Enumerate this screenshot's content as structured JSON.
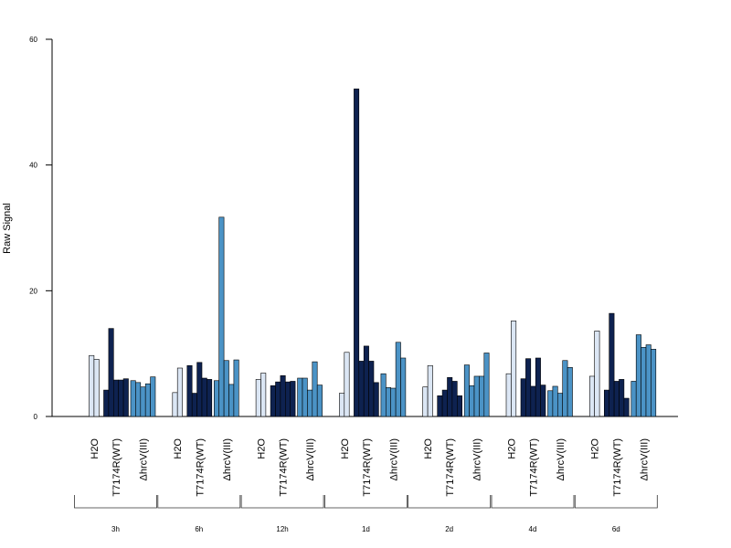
{
  "chart_data": {
    "type": "bar",
    "ylabel": "Raw Signal",
    "ylim": [
      0,
      60
    ],
    "yticks": [
      0,
      20,
      40,
      60
    ],
    "colors": {
      "H2O": "#dbe6f4",
      "T7174R(WT)": "#0e2250",
      "ΔhrcV(III)": "#4b93c6"
    },
    "groups": [
      "H2O",
      "T7174R(WT)",
      "ΔhrcV(III)"
    ],
    "timepoints": [
      {
        "label": "3h",
        "series": {
          "H2O": [
            9.7,
            9.1
          ],
          "T7174R(WT)": [
            4.2,
            14.0,
            5.8,
            5.8,
            6.0
          ],
          "ΔhrcV(III)": [
            5.7,
            5.4,
            4.7,
            5.2,
            6.3
          ]
        }
      },
      {
        "label": "6h",
        "series": {
          "H2O": [
            3.8,
            7.7
          ],
          "T7174R(WT)": [
            8.1,
            3.7,
            8.6,
            6.1,
            5.9
          ],
          "ΔhrcV(III)": [
            5.7,
            31.7,
            8.9,
            5.1,
            9.0
          ]
        }
      },
      {
        "label": "12h",
        "series": {
          "H2O": [
            5.9,
            6.9
          ],
          "T7174R(WT)": [
            4.9,
            5.5,
            6.5,
            5.5,
            5.6
          ],
          "ΔhrcV(III)": [
            6.1,
            6.1,
            4.2,
            8.7,
            5.0
          ]
        }
      },
      {
        "label": "1d",
        "series": {
          "H2O": [
            3.7,
            10.2
          ],
          "T7174R(WT)": [
            52.1,
            8.8,
            11.2,
            8.8,
            5.4
          ],
          "ΔhrcV(III)": [
            6.8,
            4.6,
            4.5,
            11.8,
            9.3
          ]
        }
      },
      {
        "label": "2d",
        "series": {
          "H2O": [
            4.7,
            8.1
          ],
          "T7174R(WT)": [
            3.3,
            4.2,
            6.2,
            5.6,
            3.3
          ],
          "ΔhrcV(III)": [
            8.2,
            4.9,
            6.4,
            6.4,
            10.1
          ]
        }
      },
      {
        "label": "4d",
        "series": {
          "H2O": [
            6.8,
            15.2
          ],
          "T7174R(WT)": [
            6.0,
            9.2,
            4.8,
            9.3,
            5.0
          ],
          "ΔhrcV(III)": [
            4.1,
            4.8,
            3.7,
            8.9,
            7.8
          ]
        }
      },
      {
        "label": "6d",
        "series": {
          "H2O": [
            6.4,
            13.6
          ],
          "T7174R(WT)": [
            4.2,
            16.4,
            5.6,
            5.9,
            2.9
          ],
          "ΔhrcV(III)": [
            5.6,
            13.0,
            11.0,
            11.4,
            10.7
          ]
        }
      }
    ]
  }
}
